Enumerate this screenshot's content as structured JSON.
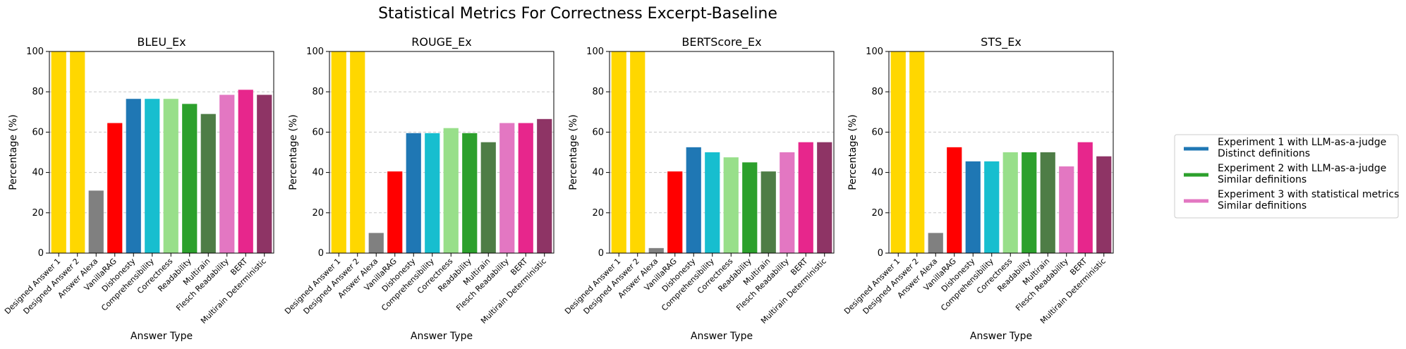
{
  "figure": {
    "title": "Statistical Metrics For Correctness Excerpt-Baseline"
  },
  "chart_data": [
    {
      "type": "bar",
      "title": "BLEU_Ex",
      "xlabel": "Answer Type",
      "ylabel": "Percentage (%)",
      "ylim": [
        0,
        100
      ],
      "yticks": [
        0,
        20,
        40,
        60,
        80,
        100
      ],
      "grid": "y-dashed",
      "categories": [
        "Designed Answer 1",
        "Designed Answer 2",
        "Answer Alexa",
        "VanillaRAG",
        "Dishonesty",
        "Comprehensibility",
        "Correctness",
        "Readability",
        "Multirain",
        "Flesch Readability",
        "BERT",
        "Multirain Deterministic"
      ],
      "values": [
        100,
        100,
        31,
        64.5,
        76.5,
        76.5,
        76.5,
        74,
        69,
        78.5,
        81,
        78.5
      ],
      "colors": [
        "#FFD700",
        "#FFD700",
        "#808080",
        "#FF0000",
        "#1F77B4",
        "#17BECF",
        "#98DF8A",
        "#2CA02C",
        "#4E7D46",
        "#E377C2",
        "#E7268C",
        "#8E3465"
      ]
    },
    {
      "type": "bar",
      "title": "ROUGE_Ex",
      "xlabel": "Answer Type",
      "ylabel": "Percentage (%)",
      "ylim": [
        0,
        100
      ],
      "yticks": [
        0,
        20,
        40,
        60,
        80,
        100
      ],
      "grid": "y-dashed",
      "categories": [
        "Designed Answer 1",
        "Designed Answer 2",
        "Answer Alexa",
        "VanillaRAG",
        "Dishonesty",
        "Comprehensibility",
        "Correctness",
        "Readability",
        "Multirain",
        "Flesch Readability",
        "BERT",
        "Multirain Deterministic"
      ],
      "values": [
        100,
        100,
        10,
        40.5,
        59.5,
        59.5,
        62,
        59.5,
        55,
        64.5,
        64.5,
        66.5
      ],
      "colors": [
        "#FFD700",
        "#FFD700",
        "#808080",
        "#FF0000",
        "#1F77B4",
        "#17BECF",
        "#98DF8A",
        "#2CA02C",
        "#4E7D46",
        "#E377C2",
        "#E7268C",
        "#8E3465"
      ]
    },
    {
      "type": "bar",
      "title": "BERTScore_Ex",
      "xlabel": "Answer Type",
      "ylabel": "Percentage (%)",
      "ylim": [
        0,
        100
      ],
      "yticks": [
        0,
        20,
        40,
        60,
        80,
        100
      ],
      "grid": "y-dashed",
      "categories": [
        "Designed Answer 1",
        "Designed Answer 2",
        "Answer Alexa",
        "VanillaRAG",
        "Dishonesty",
        "Comprehensibility",
        "Correctness",
        "Readability",
        "Multirain",
        "Flesch Readability",
        "BERT",
        "Multirain Deterministic"
      ],
      "values": [
        100,
        100,
        2.5,
        40.5,
        52.5,
        50,
        47.5,
        45,
        40.5,
        50,
        55,
        55
      ],
      "colors": [
        "#FFD700",
        "#FFD700",
        "#808080",
        "#FF0000",
        "#1F77B4",
        "#17BECF",
        "#98DF8A",
        "#2CA02C",
        "#4E7D46",
        "#E377C2",
        "#E7268C",
        "#8E3465"
      ]
    },
    {
      "type": "bar",
      "title": "STS_Ex",
      "xlabel": "Answer Type",
      "ylabel": "Percentage (%)",
      "ylim": [
        0,
        100
      ],
      "yticks": [
        0,
        20,
        40,
        60,
        80,
        100
      ],
      "grid": "y-dashed",
      "categories": [
        "Designed Answer 1",
        "Designed Answer 2",
        "Answer Alexa",
        "VanillaRAG",
        "Dishonesty",
        "Comprehensibility",
        "Correctness",
        "Readability",
        "Multirain",
        "Flesch Readability",
        "BERT",
        "Multirain Deterministic"
      ],
      "values": [
        100,
        100,
        10,
        52.5,
        45.5,
        45.5,
        50,
        50,
        50,
        43,
        55,
        48
      ],
      "colors": [
        "#FFD700",
        "#FFD700",
        "#808080",
        "#FF0000",
        "#1F77B4",
        "#17BECF",
        "#98DF8A",
        "#2CA02C",
        "#4E7D46",
        "#E377C2",
        "#E7268C",
        "#8E3465"
      ]
    }
  ],
  "legend": {
    "placement": "right",
    "entries": [
      {
        "line1": "Experiment 1 with LLM-as-a-judge",
        "line2": "Distinct definitions",
        "color": "#1F77B4"
      },
      {
        "line1": "Experiment 2 with LLM-as-a-judge",
        "line2": "Similar definitions",
        "color": "#2CA02C"
      },
      {
        "line1": "Experiment 3 with statistical metrics",
        "line2": "Similar definitions",
        "color": "#E377C2"
      }
    ]
  }
}
